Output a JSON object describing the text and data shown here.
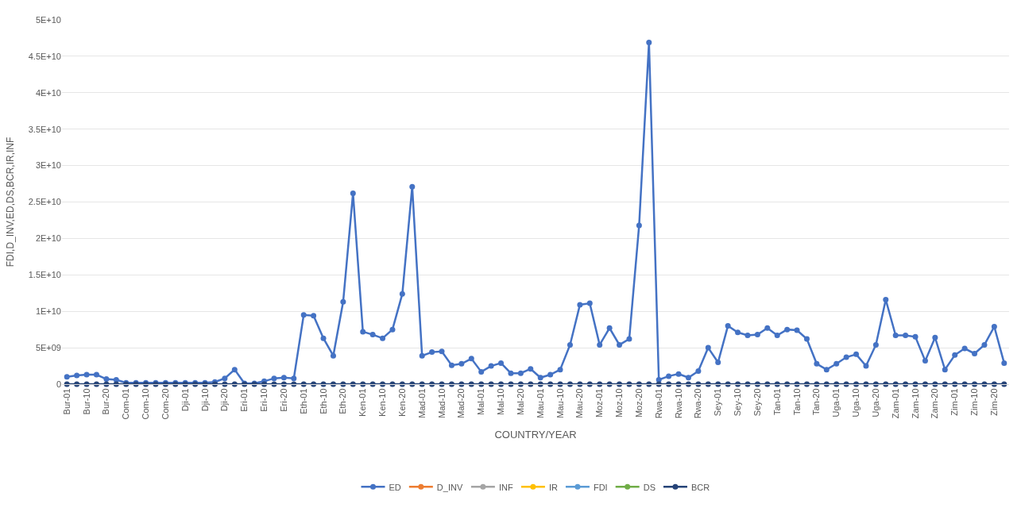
{
  "chart_data": {
    "type": "line",
    "xlabel": "COUNTRY/YEAR",
    "ylabel": "FDI,D_INV,ED,DS,BCR,IR,INF",
    "categories": [
      "Bur-01",
      null,
      "Bur-10",
      null,
      "Bur-20",
      null,
      "Com-01",
      null,
      "Com-10",
      null,
      "Com-20",
      null,
      "Dji-01",
      null,
      "Dji-10",
      null,
      "Dji-20",
      null,
      "Eri-01",
      null,
      "Eri-10",
      null,
      "Eri-20",
      null,
      "Eth-01",
      null,
      "Eth-10",
      null,
      "Eth-20",
      null,
      "Ken-01",
      null,
      "Ken-10",
      null,
      "Ken-20",
      null,
      "Mad-01",
      null,
      "Mad-10",
      null,
      "Mad-20",
      null,
      "Mal-01",
      null,
      "Mal-10",
      null,
      "Mal-20",
      null,
      "Mau-01",
      null,
      "Mau-10",
      null,
      "Mau-20",
      null,
      "Moz-01",
      null,
      "Moz-10",
      null,
      "Moz-20",
      null,
      "Rwa-01",
      null,
      "Rwa-10",
      null,
      "Rwa-20",
      null,
      "Sey-01",
      null,
      "Sey-10",
      null,
      "Sey-20",
      null,
      "Tan-01",
      null,
      "Tan-10",
      null,
      "Tan-20",
      null,
      "Uga-01",
      null,
      "Uga-10",
      null,
      "Uga-20",
      null,
      "Zam-01",
      null,
      "Zam-10",
      null,
      "Zam-20",
      null,
      "Zim-01",
      null,
      "Zim-10",
      null,
      "Zim-20",
      null
    ],
    "series": [
      {
        "name": "ED",
        "color": "#4472c4",
        "values": [
          1000000000.0,
          1200000000.0,
          1300000000.0,
          1300000000.0,
          700000000.0,
          600000000.0,
          200000000.0,
          200000000.0,
          200000000.0,
          200000000.0,
          200000000.0,
          200000000.0,
          200000000.0,
          200000000.0,
          200000000.0,
          300000000.0,
          800000000.0,
          2000000000.0,
          100000000.0,
          100000000.0,
          400000000.0,
          800000000.0,
          900000000.0,
          800000000.0,
          9500000000.0,
          9400000000.0,
          6300000000.0,
          3900000000.0,
          11300000000.0,
          26200000000.0,
          7200000000.0,
          6800000000.0,
          6300000000.0,
          7500000000.0,
          12400000000.0,
          27100000000.0,
          3900000000.0,
          4400000000.0,
          4500000000.0,
          2600000000.0,
          2800000000.0,
          3500000000.0,
          1700000000.0,
          2500000000.0,
          2900000000.0,
          1500000000.0,
          1500000000.0,
          2100000000.0,
          900000000.0,
          1300000000.0,
          2000000000.0,
          5400000000.0,
          10900000000.0,
          11100000000.0,
          5400000000.0,
          7700000000.0,
          5400000000.0,
          6200000000.0,
          21800000000.0,
          46900000000.0,
          600000000.0,
          1100000000.0,
          1400000000.0,
          900000000.0,
          1800000000.0,
          5000000000.0,
          3000000000.0,
          8000000000.0,
          7100000000.0,
          6700000000.0,
          6800000000.0,
          7700000000.0,
          6700000000.0,
          7500000000.0,
          7400000000.0,
          6200000000.0,
          2800000000.0,
          2000000000.0,
          2800000000.0,
          3700000000.0,
          4100000000.0,
          2500000000.0,
          5400000000.0,
          11600000000.0,
          6700000000.0,
          6700000000.0,
          6500000000.0,
          3200000000.0,
          6400000000.0,
          2000000000.0,
          4000000000.0,
          4900000000.0,
          4200000000.0,
          5400000000.0,
          7900000000.0,
          2900000000.0
        ]
      },
      {
        "name": "D_INV",
        "color": "#ed7d31",
        "values": [
          null,
          null,
          null,
          null,
          null,
          null,
          null,
          null,
          null,
          null,
          null,
          null,
          null,
          null,
          null,
          null,
          null,
          null,
          null,
          null,
          null,
          null,
          null,
          null,
          null,
          null,
          null,
          null,
          null,
          null,
          null,
          null,
          null,
          null,
          null,
          null,
          null,
          null,
          null,
          null,
          null,
          null,
          null,
          null,
          null,
          null,
          null,
          null,
          null,
          null,
          null,
          null,
          null,
          null,
          null,
          null,
          null,
          null,
          null,
          null,
          null,
          null,
          null,
          null,
          null,
          null,
          null,
          null,
          null,
          null,
          null,
          null,
          null,
          null,
          null,
          null,
          null,
          null,
          null,
          null,
          null,
          null,
          null,
          null,
          null,
          null,
          null,
          null,
          null,
          null,
          null,
          null,
          null,
          null,
          null,
          null
        ]
      },
      {
        "name": "INF",
        "color": "#a5a5a5",
        "values": [
          null,
          null,
          null,
          null,
          null,
          null,
          null,
          null,
          null,
          null,
          null,
          null,
          null,
          null,
          null,
          null,
          null,
          null,
          null,
          null,
          null,
          null,
          null,
          null,
          null,
          null,
          null,
          null,
          null,
          null,
          null,
          null,
          null,
          null,
          null,
          null,
          null,
          null,
          null,
          null,
          null,
          null,
          null,
          null,
          null,
          null,
          null,
          null,
          null,
          null,
          null,
          null,
          null,
          null,
          null,
          null,
          null,
          null,
          null,
          null,
          null,
          null,
          null,
          null,
          null,
          null,
          null,
          null,
          null,
          null,
          null,
          null,
          null,
          null,
          null,
          null,
          null,
          null,
          null,
          null,
          null,
          null,
          null,
          null,
          null,
          null,
          null,
          null,
          null,
          null,
          null,
          null,
          null,
          null,
          null,
          null
        ]
      },
      {
        "name": "IR",
        "color": "#ffc000",
        "values": [
          null,
          null,
          null,
          null,
          null,
          null,
          null,
          null,
          null,
          null,
          null,
          null,
          null,
          null,
          null,
          null,
          null,
          null,
          null,
          null,
          null,
          null,
          null,
          null,
          null,
          null,
          null,
          null,
          null,
          null,
          null,
          null,
          null,
          null,
          null,
          null,
          null,
          null,
          null,
          null,
          null,
          null,
          null,
          null,
          null,
          null,
          null,
          null,
          null,
          null,
          null,
          null,
          null,
          null,
          null,
          null,
          null,
          null,
          null,
          null,
          null,
          null,
          null,
          null,
          null,
          null,
          null,
          null,
          null,
          null,
          null,
          null,
          null,
          null,
          null,
          null,
          null,
          null,
          null,
          null,
          null,
          null,
          null,
          null,
          null,
          null,
          null,
          null,
          null,
          null,
          null,
          null,
          null,
          null,
          null,
          null
        ]
      },
      {
        "name": "FDI",
        "color": "#5b9bd5",
        "values": [
          null,
          null,
          null,
          null,
          null,
          null,
          null,
          null,
          null,
          null,
          null,
          null,
          null,
          null,
          null,
          null,
          null,
          null,
          null,
          null,
          null,
          null,
          null,
          null,
          null,
          null,
          null,
          null,
          null,
          null,
          null,
          null,
          null,
          null,
          null,
          null,
          null,
          null,
          null,
          null,
          null,
          null,
          null,
          null,
          null,
          null,
          null,
          null,
          null,
          null,
          null,
          null,
          null,
          null,
          null,
          null,
          null,
          null,
          null,
          null,
          null,
          null,
          null,
          null,
          null,
          null,
          null,
          null,
          null,
          null,
          null,
          null,
          null,
          null,
          null,
          null,
          null,
          null,
          null,
          null,
          null,
          null,
          null,
          null,
          null,
          null,
          null,
          null,
          null,
          null,
          null,
          null,
          null,
          null,
          null,
          null
        ]
      },
      {
        "name": "DS",
        "color": "#70ad47",
        "values": [
          null,
          null,
          null,
          null,
          null,
          null,
          null,
          null,
          null,
          null,
          null,
          null,
          null,
          null,
          null,
          null,
          null,
          null,
          null,
          null,
          null,
          null,
          null,
          null,
          null,
          null,
          null,
          null,
          null,
          null,
          null,
          null,
          null,
          null,
          null,
          null,
          null,
          null,
          null,
          null,
          null,
          null,
          null,
          null,
          null,
          null,
          null,
          null,
          null,
          null,
          null,
          null,
          null,
          null,
          null,
          null,
          null,
          null,
          null,
          null,
          null,
          null,
          null,
          null,
          null,
          null,
          null,
          null,
          null,
          null,
          null,
          null,
          null,
          null,
          null,
          null,
          null,
          null,
          null,
          null,
          null,
          null,
          null,
          null,
          null,
          null,
          null,
          null,
          null,
          null,
          null,
          null,
          null,
          null,
          null,
          null
        ]
      },
      {
        "name": "BCR",
        "color": "#264478",
        "values": [
          0,
          0,
          0,
          0,
          0,
          0,
          0,
          0,
          0,
          0,
          0,
          0,
          0,
          0,
          0,
          0,
          0,
          0,
          0,
          0,
          0,
          0,
          0,
          0,
          0,
          0,
          0,
          0,
          0,
          0,
          0,
          0,
          0,
          0,
          0,
          0,
          0,
          0,
          0,
          0,
          0,
          0,
          0,
          0,
          0,
          0,
          0,
          0,
          0,
          0,
          0,
          0,
          0,
          0,
          0,
          0,
          0,
          0,
          0,
          0,
          0,
          0,
          0,
          0,
          0,
          0,
          0,
          0,
          0,
          0,
          0,
          0,
          0,
          0,
          0,
          0,
          0,
          0,
          0,
          0,
          0,
          0,
          0,
          0,
          0,
          0,
          0,
          0,
          0,
          0,
          0,
          0,
          0,
          0,
          0,
          0
        ]
      }
    ],
    "ylim": [
      0,
      50000000000.0
    ],
    "yticks": [
      0,
      {
        "value": 5000000000.0,
        "label": "5E+09"
      },
      {
        "value": 10000000000.0,
        "label": "1E+10"
      },
      {
        "value": 15000000000.0,
        "label": "1.5E+10"
      },
      {
        "value": 20000000000.0,
        "label": "2E+10"
      },
      {
        "value": 25000000000.0,
        "label": "2.5E+10"
      },
      {
        "value": 30000000000.0,
        "label": "3E+10"
      },
      {
        "value": 35000000000.0,
        "label": "3.5E+10"
      },
      {
        "value": 40000000000.0,
        "label": "4E+10"
      },
      {
        "value": 45000000000.0,
        "label": "4.5E+10"
      },
      {
        "value": 50000000000.0,
        "label": "5E+10"
      }
    ],
    "grid": "y",
    "legend": "bottom",
    "marker": "circle",
    "line_style": "solid"
  }
}
